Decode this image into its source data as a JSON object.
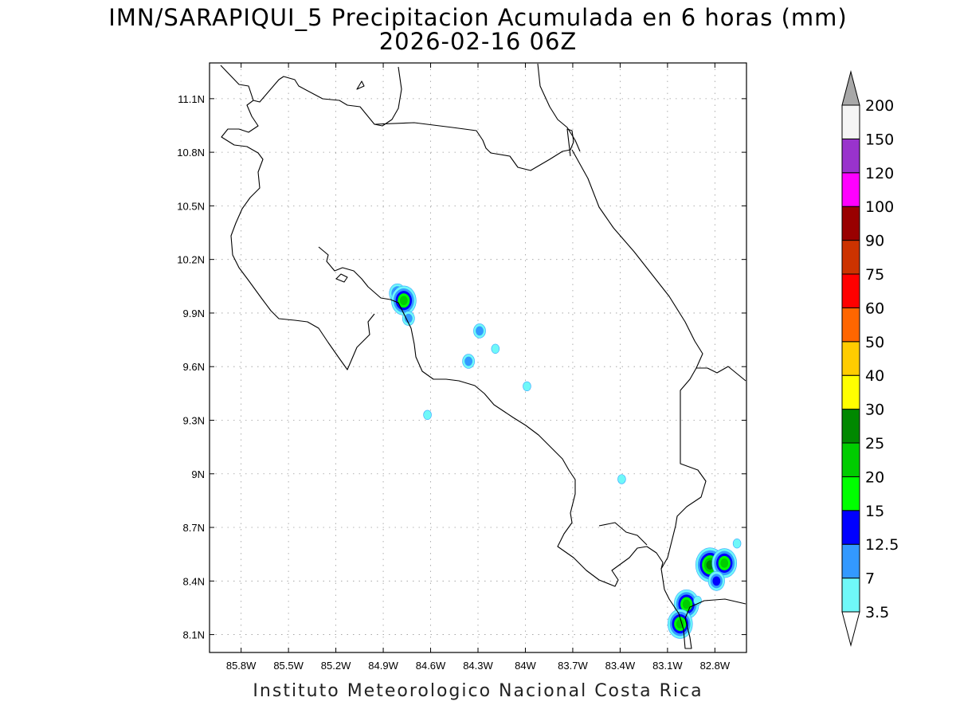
{
  "title_line1": "IMN/SARAPIQUI_5 Precipitacion Acumulada en 6 horas (mm)",
  "title_line2": "2026-02-16 06Z",
  "footer": "Instituto Meteorologico Nacional Costa Rica",
  "map": {
    "lon_range": [
      -86.0,
      -82.6
    ],
    "lat_range": [
      8.0,
      11.3
    ],
    "lon_ticks": [
      "85.8W",
      "85.5W",
      "85.2W",
      "84.9W",
      "84.6W",
      "84.3W",
      "84W",
      "83.7W",
      "83.4W",
      "83.1W",
      "82.8W"
    ],
    "lat_ticks": [
      "11.1N",
      "10.8N",
      "10.5N",
      "10.2N",
      "9.9N",
      "9.6N",
      "9.3N",
      "9N",
      "8.7N",
      "8.4N",
      "8.1N"
    ],
    "grid": true
  },
  "colorbar": {
    "labels": [
      "3.5",
      "7",
      "12.5",
      "15",
      "20",
      "25",
      "30",
      "40",
      "50",
      "60",
      "75",
      "90",
      "100",
      "120",
      "150",
      "200"
    ],
    "colors": [
      "#6ff8f8",
      "#3399ff",
      "#0000ff",
      "#00ff00",
      "#00cc00",
      "#008800",
      "#ffff00",
      "#ffcc00",
      "#ff6600",
      "#ff0000",
      "#cc3300",
      "#990000",
      "#ff00ff",
      "#9933cc",
      "#f5f5f5",
      "#a8a8a8"
    ]
  },
  "precip_cells": [
    {
      "lon": -84.81,
      "lat": 10.01,
      "level": "12.5"
    },
    {
      "lon": -84.77,
      "lat": 9.97,
      "level": "20"
    },
    {
      "lon": -84.74,
      "lat": 9.87,
      "level": "7"
    },
    {
      "lon": -84.29,
      "lat": 9.8,
      "level": "7"
    },
    {
      "lon": -84.36,
      "lat": 9.63,
      "level": "7"
    },
    {
      "lon": -84.19,
      "lat": 9.7,
      "level": "3.5"
    },
    {
      "lon": -83.99,
      "lat": 9.49,
      "level": "3.5"
    },
    {
      "lon": -84.62,
      "lat": 9.33,
      "level": "3.5"
    },
    {
      "lon": -83.39,
      "lat": 8.97,
      "level": "3.5"
    },
    {
      "lon": -82.83,
      "lat": 8.49,
      "level": "25"
    },
    {
      "lon": -82.74,
      "lat": 8.5,
      "level": "20"
    },
    {
      "lon": -82.79,
      "lat": 8.4,
      "level": "12.5"
    },
    {
      "lon": -82.66,
      "lat": 8.61,
      "level": "3.5"
    },
    {
      "lon": -82.98,
      "lat": 8.27,
      "level": "20"
    },
    {
      "lon": -83.02,
      "lat": 8.16,
      "level": "20"
    },
    {
      "lon": -82.91,
      "lat": 8.29,
      "level": "3.5"
    }
  ]
}
